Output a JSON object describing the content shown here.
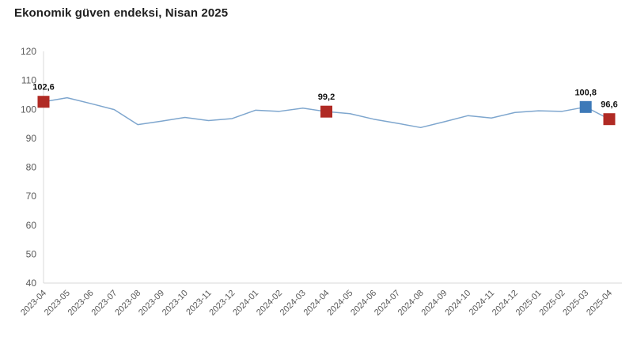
{
  "title": "Ekonomik güven endeksi, Nisan 2025",
  "colors": {
    "background": "#FFFFFF",
    "line": "#7EA6CE",
    "marker_red": "#B02A24",
    "marker_blue": "#3D79B8",
    "axis": "#D9D9D9",
    "tick_label": "#595959",
    "title_text": "#1F1F1F",
    "value_label": "#111111"
  },
  "chart_data": {
    "type": "line",
    "title": "Ekonomik güven endeksi, Nisan 2025",
    "xlabel": "",
    "ylabel": "",
    "ylim": [
      40,
      120
    ],
    "yticks": [
      40,
      50,
      60,
      70,
      80,
      90,
      100,
      110,
      120
    ],
    "grid": false,
    "legend_position": "none",
    "x": [
      "2023-04",
      "2023-05",
      "2023-06",
      "2023-07",
      "2023-08",
      "2023-09",
      "2023-10",
      "2023-11",
      "2023-12",
      "2024-01",
      "2024-02",
      "2024-03",
      "2024-04",
      "2024-05",
      "2024-06",
      "2024-07",
      "2024-08",
      "2024-09",
      "2024-10",
      "2024-11",
      "2024-12",
      "2025-01",
      "2025-02",
      "2025-03",
      "2025-04"
    ],
    "values": [
      102.6,
      104.0,
      102.0,
      99.9,
      94.7,
      95.9,
      97.2,
      96.1,
      96.8,
      99.7,
      99.3,
      100.4,
      99.2,
      98.5,
      96.6,
      95.2,
      93.7,
      95.7,
      97.8,
      97.0,
      98.9,
      99.5,
      99.3,
      100.8,
      96.6
    ],
    "annotated_points": [
      {
        "x": "2023-04",
        "value": 102.6,
        "label": "102,6",
        "marker": "red-square"
      },
      {
        "x": "2024-04",
        "value": 99.2,
        "label": "99,2",
        "marker": "red-square"
      },
      {
        "x": "2025-03",
        "value": 100.8,
        "label": "100,8",
        "marker": "blue-square"
      },
      {
        "x": "2025-04",
        "value": 96.6,
        "label": "96,6",
        "marker": "red-square"
      }
    ]
  }
}
